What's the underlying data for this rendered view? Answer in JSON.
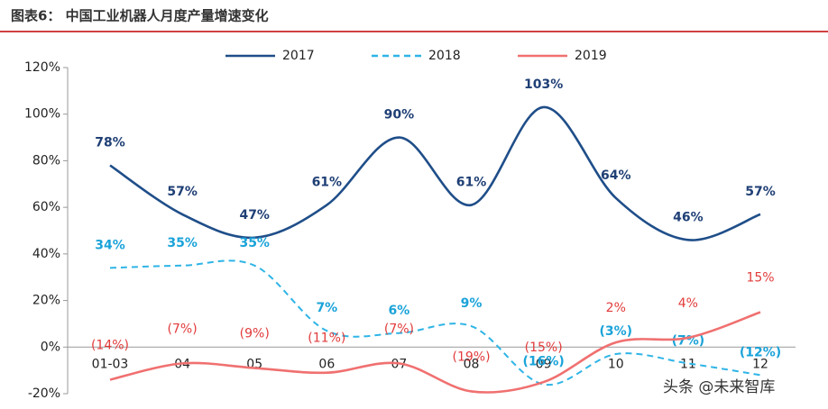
{
  "chart_data": {
    "type": "line",
    "title": "图表6： 中国工业机器人月度产量增速变化",
    "watermark": "头条 @未来智库",
    "categories": [
      "01-03",
      "04",
      "05",
      "06",
      "07",
      "08",
      "09",
      "10",
      "11",
      "12"
    ],
    "series": [
      {
        "name": "2017",
        "color": "#1f4e89",
        "label_color": "#1f3f75",
        "dashed": false,
        "values": [
          78,
          57,
          47,
          61,
          90,
          61,
          103,
          64,
          46,
          57
        ],
        "value_labels": [
          "78%",
          "57%",
          "47%",
          "61%",
          "90%",
          "61%",
          "103%",
          "64%",
          "46%",
          "57%"
        ]
      },
      {
        "name": "2018",
        "color": "#2eb4e6",
        "label_color": "#1aa3d9",
        "dashed": true,
        "values": [
          34,
          35,
          35,
          7,
          6,
          9,
          -16,
          -3,
          -7,
          -12
        ],
        "value_labels": [
          "34%",
          "35%",
          "35%",
          "7%",
          "6%",
          "9%",
          "(16%)",
          "(3%)",
          "(7%)",
          "(12%)"
        ]
      },
      {
        "name": "2019",
        "color": "#f07070",
        "label_color": "#e23b3b",
        "dashed": false,
        "values": [
          -14,
          -7,
          -9,
          -11,
          -7,
          -19,
          -15,
          2,
          4,
          15
        ],
        "value_labels": [
          "(14%)",
          "(7%)",
          "(9%)",
          "(11%)",
          "(7%)",
          "(19%)",
          "(15%)",
          "2%",
          "4%",
          "15%"
        ]
      }
    ],
    "ylim": [
      -20,
      120
    ],
    "yticks": [
      {
        "value": -20,
        "label": "-20%"
      },
      {
        "value": 0,
        "label": "0%"
      },
      {
        "value": 20,
        "label": "20%"
      },
      {
        "value": 40,
        "label": "40%"
      },
      {
        "value": 60,
        "label": "60%"
      },
      {
        "value": 80,
        "label": "80%"
      },
      {
        "value": 100,
        "label": "100%"
      },
      {
        "value": 120,
        "label": "120%"
      }
    ],
    "smooth": true,
    "grid": false,
    "legend": "top"
  }
}
